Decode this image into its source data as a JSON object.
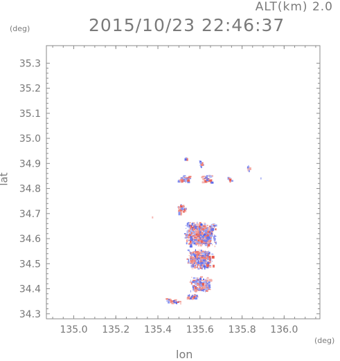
{
  "header": {
    "altitude_label": "ALT(km) 2.0",
    "timestamp": "2015/10/23 22:46:37"
  },
  "axes": {
    "y_unit": "(deg)",
    "x_unit": "(deg)",
    "y_label": "lat",
    "x_label": "lon"
  },
  "chart_data": {
    "type": "heatmap",
    "xlim": [
      134.87,
      136.17
    ],
    "ylim": [
      34.28,
      35.37
    ],
    "x_ticks": [
      135.0,
      135.2,
      135.4,
      135.6,
      135.8,
      136.0
    ],
    "x_tick_labels": [
      "135.0",
      "135.2",
      "135.4",
      "135.6",
      "135.8",
      "136.0"
    ],
    "y_ticks": [
      34.3,
      34.4,
      34.5,
      34.6,
      34.7,
      34.8,
      34.9,
      35.0,
      35.1,
      35.2,
      35.3
    ],
    "y_tick_labels": [
      "34.3",
      "34.4",
      "34.5",
      "34.6",
      "34.7",
      "34.8",
      "34.9",
      "35.0",
      "35.1",
      "35.2",
      "35.3"
    ],
    "grid": false,
    "colors": {
      "positive": "#e8564a",
      "negative": "#4a5ae8",
      "axis": "#8a8a8a"
    },
    "clusters": [
      {
        "lon": 135.6,
        "lat": 34.62,
        "lon_span": 0.16,
        "lat_span": 0.1,
        "density": 520
      },
      {
        "lon": 135.6,
        "lat": 34.52,
        "lon_span": 0.13,
        "lat_span": 0.08,
        "density": 300
      },
      {
        "lon": 135.6,
        "lat": 34.42,
        "lon_span": 0.1,
        "lat_span": 0.06,
        "density": 150
      },
      {
        "lon": 135.56,
        "lat": 34.37,
        "lon_span": 0.06,
        "lat_span": 0.02,
        "density": 50
      },
      {
        "lon": 135.47,
        "lat": 34.355,
        "lon_span": 0.08,
        "lat_span": 0.015,
        "density": 25
      },
      {
        "lon": 135.51,
        "lat": 34.72,
        "lon_span": 0.04,
        "lat_span": 0.04,
        "density": 40
      },
      {
        "lon": 135.52,
        "lat": 34.84,
        "lon_span": 0.06,
        "lat_span": 0.03,
        "density": 40
      },
      {
        "lon": 135.63,
        "lat": 34.84,
        "lon_span": 0.05,
        "lat_span": 0.04,
        "density": 35
      },
      {
        "lon": 135.6,
        "lat": 34.9,
        "lon_span": 0.02,
        "lat_span": 0.03,
        "density": 12
      },
      {
        "lon": 135.74,
        "lat": 34.84,
        "lon_span": 0.02,
        "lat_span": 0.02,
        "density": 10
      },
      {
        "lon": 135.825,
        "lat": 34.885,
        "lon_span": 0.02,
        "lat_span": 0.02,
        "density": 10
      },
      {
        "lon": 135.53,
        "lat": 34.92,
        "lon_span": 0.01,
        "lat_span": 0.01,
        "density": 4
      },
      {
        "lon": 135.89,
        "lat": 34.845,
        "lon_span": 0.004,
        "lat_span": 0.004,
        "density": 1
      },
      {
        "lon": 135.37,
        "lat": 34.69,
        "lon_span": 0.004,
        "lat_span": 0.004,
        "density": 1
      }
    ]
  }
}
